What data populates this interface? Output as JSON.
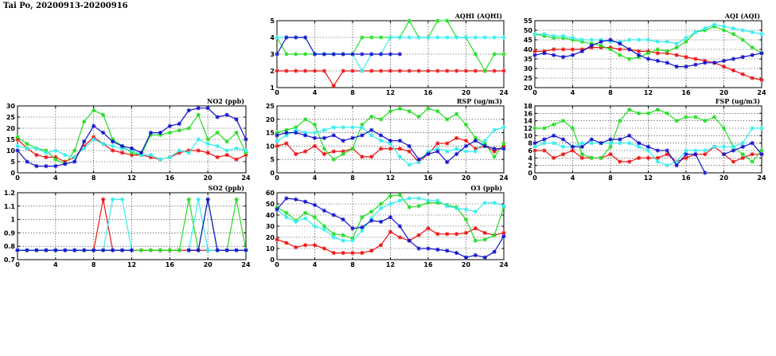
{
  "page": {
    "title": "Tai Po, 20200913-20200916"
  },
  "colors": {
    "red": "#ee1111",
    "green": "#22dd22",
    "cyan": "#33eeee",
    "blue": "#1111cc"
  },
  "chart_data": [
    {
      "id": "aqhi",
      "type": "line",
      "title": "AQHI (AQHI)",
      "xlim": [
        0,
        24
      ],
      "xticks": [
        "0",
        "4",
        "8",
        "12",
        "16",
        "20",
        "24"
      ],
      "ylim": [
        1,
        5
      ],
      "yticks": [
        "1",
        "2",
        "3",
        "4",
        "5"
      ],
      "grid": true,
      "x": [
        0,
        1,
        2,
        3,
        4,
        5,
        6,
        7,
        8,
        9,
        10,
        11,
        12,
        13,
        14,
        15,
        16,
        17,
        18,
        19,
        20,
        21,
        22,
        23,
        24
      ],
      "series": [
        {
          "color": "red",
          "values": [
            2,
            2,
            2,
            2,
            2,
            2,
            1.1,
            2,
            2,
            2,
            2,
            2,
            2,
            2,
            2,
            2,
            2,
            2,
            2,
            2,
            2,
            2,
            2,
            2,
            2
          ]
        },
        {
          "color": "green",
          "values": [
            4,
            3,
            3,
            3,
            3,
            3,
            3,
            3,
            3,
            4,
            4,
            4,
            4,
            4,
            5,
            4,
            4,
            5,
            5,
            4,
            4,
            3,
            2,
            3,
            3
          ]
        },
        {
          "color": "cyan",
          "values": [
            4,
            4,
            4,
            4,
            3,
            3,
            3,
            3,
            3,
            2,
            3,
            3,
            4,
            4,
            4,
            4,
            4,
            4,
            4,
            4,
            4,
            4,
            4,
            4,
            4
          ]
        },
        {
          "color": "blue",
          "values": [
            3,
            4,
            4,
            4,
            3,
            3,
            3,
            3,
            3,
            3,
            3,
            3,
            3,
            3,
            null,
            null,
            null,
            null,
            null,
            null,
            null,
            null,
            null,
            null,
            null
          ]
        }
      ]
    },
    {
      "id": "aqi",
      "type": "line",
      "title": "AQI (AQI)",
      "xlim": [
        0,
        24
      ],
      "xticks": [
        "0",
        "4",
        "8",
        "12",
        "16",
        "20",
        "24"
      ],
      "ylim": [
        20,
        55
      ],
      "yticks": [
        "20",
        "25",
        "30",
        "35",
        "40",
        "45",
        "50",
        "55"
      ],
      "grid": true,
      "x": [
        0,
        1,
        2,
        3,
        4,
        5,
        6,
        7,
        8,
        9,
        10,
        11,
        12,
        13,
        14,
        15,
        16,
        17,
        18,
        19,
        20,
        21,
        22,
        23,
        24
      ],
      "series": [
        {
          "color": "red",
          "values": [
            39,
            39,
            40,
            40,
            40,
            40,
            41,
            41,
            41,
            40,
            40,
            39,
            39,
            38,
            38,
            37,
            36,
            35,
            34,
            33,
            31,
            29,
            27,
            25,
            24
          ]
        },
        {
          "color": "green",
          "values": [
            48,
            47,
            46,
            46,
            45,
            44,
            43,
            42,
            40,
            37,
            35,
            36,
            38,
            40,
            39,
            41,
            44,
            49,
            50,
            52,
            50,
            48,
            45,
            41,
            38
          ]
        },
        {
          "color": "cyan",
          "values": [
            48,
            48,
            47,
            47,
            46,
            45,
            45,
            45,
            44,
            44,
            45,
            45,
            45,
            44,
            44,
            43,
            46,
            49,
            51,
            53,
            52,
            51,
            50,
            49,
            48
          ]
        },
        {
          "color": "blue",
          "values": [
            37,
            38,
            37,
            36,
            37,
            39,
            42,
            44,
            45,
            43,
            40,
            37,
            35,
            34,
            33,
            31,
            31,
            32,
            33,
            33,
            34,
            35,
            36,
            37,
            38
          ]
        }
      ]
    },
    {
      "id": "no2",
      "type": "line",
      "title": "NO2 (ppb)",
      "xlim": [
        0,
        24
      ],
      "xticks": [
        "0",
        "4",
        "8",
        "12",
        "16",
        "20",
        "24"
      ],
      "ylim": [
        0,
        30
      ],
      "yticks": [
        "0",
        "5",
        "10",
        "15",
        "20",
        "25",
        "30"
      ],
      "grid": true,
      "x": [
        0,
        1,
        2,
        3,
        4,
        5,
        6,
        7,
        8,
        9,
        10,
        11,
        12,
        13,
        14,
        15,
        16,
        17,
        18,
        19,
        20,
        21,
        22,
        23,
        24
      ],
      "series": [
        {
          "color": "red",
          "values": [
            15,
            11,
            8,
            7,
            7,
            5,
            7,
            12,
            16,
            13,
            10,
            9,
            8,
            8,
            7,
            6,
            7,
            9,
            10,
            10,
            9,
            7,
            8,
            6,
            8
          ]
        },
        {
          "color": "green",
          "values": [
            16,
            13,
            11,
            10,
            6,
            4,
            10,
            23,
            28,
            26,
            15,
            12,
            9,
            8,
            17,
            17,
            18,
            19,
            20,
            26,
            15,
            18,
            14,
            18,
            9
          ]
        },
        {
          "color": "cyan",
          "values": [
            12,
            11,
            11,
            9,
            10,
            8,
            7,
            11,
            15,
            13,
            12,
            11,
            10,
            8,
            8,
            6,
            7,
            10,
            9,
            15,
            13,
            12,
            10,
            11,
            10
          ]
        },
        {
          "color": "blue",
          "values": [
            10,
            5,
            3,
            3,
            3,
            4,
            5,
            14,
            21,
            18,
            14,
            12,
            11,
            9,
            18,
            18,
            21,
            22,
            28,
            29,
            29,
            25,
            26,
            24,
            15
          ]
        }
      ]
    },
    {
      "id": "rsp",
      "type": "line",
      "title": "RSP (ug/m3)",
      "xlim": [
        0,
        24
      ],
      "xticks": [
        "0",
        "4",
        "8",
        "12",
        "16",
        "20",
        "24"
      ],
      "ylim": [
        0,
        25
      ],
      "yticks": [
        "0",
        "5",
        "10",
        "15",
        "20",
        "25"
      ],
      "grid": true,
      "x": [
        0,
        1,
        2,
        3,
        4,
        5,
        6,
        7,
        8,
        9,
        10,
        11,
        12,
        13,
        14,
        15,
        16,
        17,
        18,
        19,
        20,
        21,
        22,
        23,
        24
      ],
      "series": [
        {
          "color": "red",
          "values": [
            10,
            11,
            7,
            8,
            10,
            7,
            8,
            8,
            9,
            6,
            6,
            9,
            9,
            9,
            8,
            4,
            7,
            11,
            11,
            13,
            12,
            9,
            10,
            8,
            10
          ]
        },
        {
          "color": "green",
          "values": [
            15,
            16,
            17,
            20,
            18,
            9,
            5,
            7,
            9,
            18,
            21,
            20,
            23,
            24,
            23,
            21,
            24,
            23,
            20,
            22,
            18,
            13,
            11,
            6,
            11
          ]
        },
        {
          "color": "cyan",
          "values": [
            12,
            14,
            16,
            15,
            15,
            16,
            17,
            17,
            17,
            17,
            14,
            12,
            11,
            6,
            3,
            4,
            8,
            9,
            8,
            9,
            8,
            8,
            12,
            16,
            17
          ]
        },
        {
          "color": "blue",
          "values": [
            14,
            15,
            15,
            14,
            13,
            13,
            14,
            12,
            13,
            14,
            16,
            14,
            12,
            12,
            10,
            5,
            7,
            8,
            4,
            7,
            10,
            12,
            10,
            9,
            9
          ]
        }
      ]
    },
    {
      "id": "fsp",
      "type": "line",
      "title": "FSP (ug/m3)",
      "xlim": [
        0,
        24
      ],
      "xticks": [
        "0",
        "4",
        "8",
        "12",
        "16",
        "20",
        "24"
      ],
      "ylim": [
        0,
        18
      ],
      "yticks": [
        "0",
        "2",
        "4",
        "6",
        "8",
        "10",
        "12",
        "14",
        "16",
        "18"
      ],
      "grid": true,
      "x": [
        0,
        1,
        2,
        3,
        4,
        5,
        6,
        7,
        8,
        9,
        10,
        11,
        12,
        13,
        14,
        15,
        16,
        17,
        18,
        19,
        20,
        21,
        22,
        23,
        24
      ],
      "series": [
        {
          "color": "red",
          "values": [
            6,
            6,
            4,
            5,
            6,
            4,
            4,
            4,
            5,
            3,
            3,
            4,
            4,
            4,
            5,
            3,
            4,
            5,
            5,
            7,
            5,
            3,
            4,
            5,
            5
          ]
        },
        {
          "color": "green",
          "values": [
            12,
            12,
            13,
            14,
            12,
            5,
            4,
            4,
            7,
            14,
            17,
            16,
            16,
            17,
            16,
            14,
            15,
            15,
            14,
            15,
            12,
            7,
            5,
            3,
            6
          ]
        },
        {
          "color": "cyan",
          "values": [
            7,
            8,
            8,
            7,
            7,
            8,
            8,
            8,
            8,
            8,
            8,
            7,
            6,
            3,
            2,
            3,
            6,
            6,
            6,
            7,
            7,
            7,
            8,
            12,
            12
          ]
        },
        {
          "color": "blue",
          "values": [
            8,
            9,
            10,
            9,
            7,
            7,
            9,
            8,
            9,
            9,
            10,
            8,
            7,
            6,
            6,
            2,
            5,
            5,
            0,
            null,
            5,
            6,
            7,
            8,
            5
          ]
        }
      ]
    },
    {
      "id": "so2",
      "type": "line",
      "title": "SO2 (ppb)",
      "xlim": [
        0,
        24
      ],
      "xticks": [
        "0",
        "4",
        "8",
        "12",
        "16",
        "20",
        "24"
      ],
      "ylim": [
        0.7,
        1.2
      ],
      "yticks": [
        "0.7",
        "0.8",
        "0.9",
        "1",
        "1.1",
        "1.2"
      ],
      "grid": true,
      "x": [
        0,
        1,
        2,
        3,
        4,
        5,
        6,
        7,
        8,
        9,
        10,
        11,
        12,
        13,
        14,
        15,
        16,
        17,
        18,
        19,
        20,
        21,
        22,
        23,
        24
      ],
      "series": [
        {
          "color": "red",
          "values": [
            0.77,
            0.77,
            0.77,
            0.77,
            0.77,
            0.77,
            0.77,
            0.77,
            0.77,
            1.15,
            0.77,
            0.77,
            0.77,
            0.77,
            0.77,
            0.77,
            0.77,
            0.77,
            0.77,
            0.77,
            0.77,
            0.77,
            0.77,
            0.77,
            0.77
          ]
        },
        {
          "color": "green",
          "values": [
            0.77,
            0.77,
            0.77,
            0.77,
            0.77,
            0.77,
            0.77,
            0.77,
            0.77,
            0.77,
            0.77,
            0.77,
            0.77,
            0.77,
            0.77,
            0.77,
            0.77,
            0.77,
            1.15,
            0.77,
            1.15,
            0.77,
            0.77,
            1.15,
            0.77
          ]
        },
        {
          "color": "cyan",
          "values": [
            0.77,
            0.77,
            0.77,
            0.77,
            0.77,
            0.77,
            0.77,
            0.77,
            0.77,
            0.77,
            1.15,
            1.15,
            0.77,
            null,
            null,
            null,
            null,
            null,
            0.77,
            1.15,
            0.77,
            0.77,
            0.77,
            0.77,
            0.77
          ]
        },
        {
          "color": "blue",
          "values": [
            0.77,
            0.77,
            0.77,
            0.77,
            0.77,
            0.77,
            0.77,
            0.77,
            0.77,
            0.77,
            0.77,
            0.77,
            0.77,
            null,
            null,
            null,
            null,
            null,
            0.77,
            0.77,
            1.15,
            0.77,
            0.77,
            0.77,
            0.77
          ]
        }
      ]
    },
    {
      "id": "o3",
      "type": "line",
      "title": "O3 (ppb)",
      "xlim": [
        0,
        24
      ],
      "xticks": [
        "0",
        "4",
        "8",
        "12",
        "16",
        "20",
        "24"
      ],
      "ylim": [
        0,
        60
      ],
      "yticks": [
        "0",
        "10",
        "20",
        "30",
        "40",
        "50",
        "60"
      ],
      "grid": true,
      "x": [
        0,
        1,
        2,
        3,
        4,
        5,
        6,
        7,
        8,
        9,
        10,
        11,
        12,
        13,
        14,
        15,
        16,
        17,
        18,
        19,
        20,
        21,
        22,
        23,
        24
      ],
      "series": [
        {
          "color": "red",
          "values": [
            18,
            15,
            11,
            13,
            13,
            10,
            6,
            6,
            6,
            6,
            8,
            13,
            25,
            20,
            17,
            22,
            28,
            23,
            23,
            23,
            24,
            28,
            24,
            22,
            24
          ]
        },
        {
          "color": "green",
          "values": [
            47,
            42,
            35,
            42,
            38,
            30,
            23,
            22,
            19,
            38,
            43,
            50,
            57,
            58,
            47,
            48,
            51,
            51,
            49,
            47,
            36,
            17,
            18,
            22,
            47
          ]
        },
        {
          "color": "cyan",
          "values": [
            45,
            38,
            34,
            37,
            30,
            27,
            20,
            17,
            17,
            26,
            37,
            46,
            50,
            53,
            55,
            55,
            53,
            53,
            48,
            46,
            45,
            43,
            51,
            51,
            48
          ]
        },
        {
          "color": "blue",
          "values": [
            45,
            55,
            54,
            52,
            49,
            44,
            40,
            36,
            28,
            29,
            35,
            34,
            38,
            30,
            17,
            10,
            10,
            9,
            8,
            6,
            2,
            4,
            2,
            7,
            21
          ]
        }
      ]
    }
  ]
}
